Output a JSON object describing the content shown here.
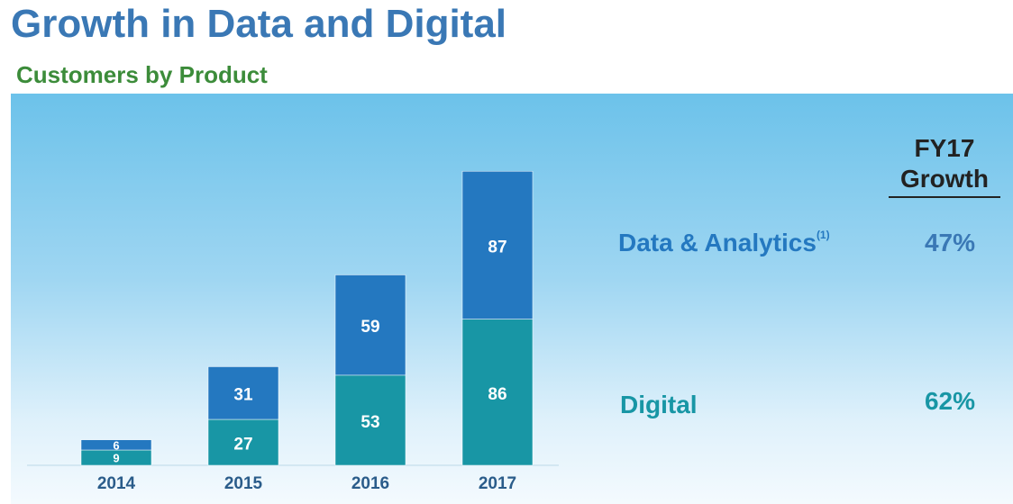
{
  "title": "Growth in Data and Digital",
  "subtitle": "Customers by Product",
  "colors": {
    "data_analytics": "#2478c0",
    "digital": "#1896a5",
    "title": "#3a78b5",
    "subtitle": "#3c8c3a"
  },
  "growth_header": {
    "line1": "FY17",
    "line2": "Growth"
  },
  "rows": [
    {
      "label": "Data & Analytics",
      "footnote": "(1)",
      "value": "47%"
    },
    {
      "label": "Digital",
      "footnote": "",
      "value": "62%"
    }
  ],
  "chart_data": {
    "type": "bar",
    "stacked": true,
    "title": "Customers by Product",
    "categories": [
      "2014",
      "2015",
      "2016",
      "2017"
    ],
    "series": [
      {
        "name": "Digital",
        "values": [
          9,
          27,
          53,
          86
        ]
      },
      {
        "name": "Data & Analytics",
        "values": [
          6,
          31,
          59,
          87
        ]
      }
    ],
    "ylim": [
      0,
      180
    ],
    "xlabel": "",
    "ylabel": "",
    "legend": "right-side labels"
  }
}
